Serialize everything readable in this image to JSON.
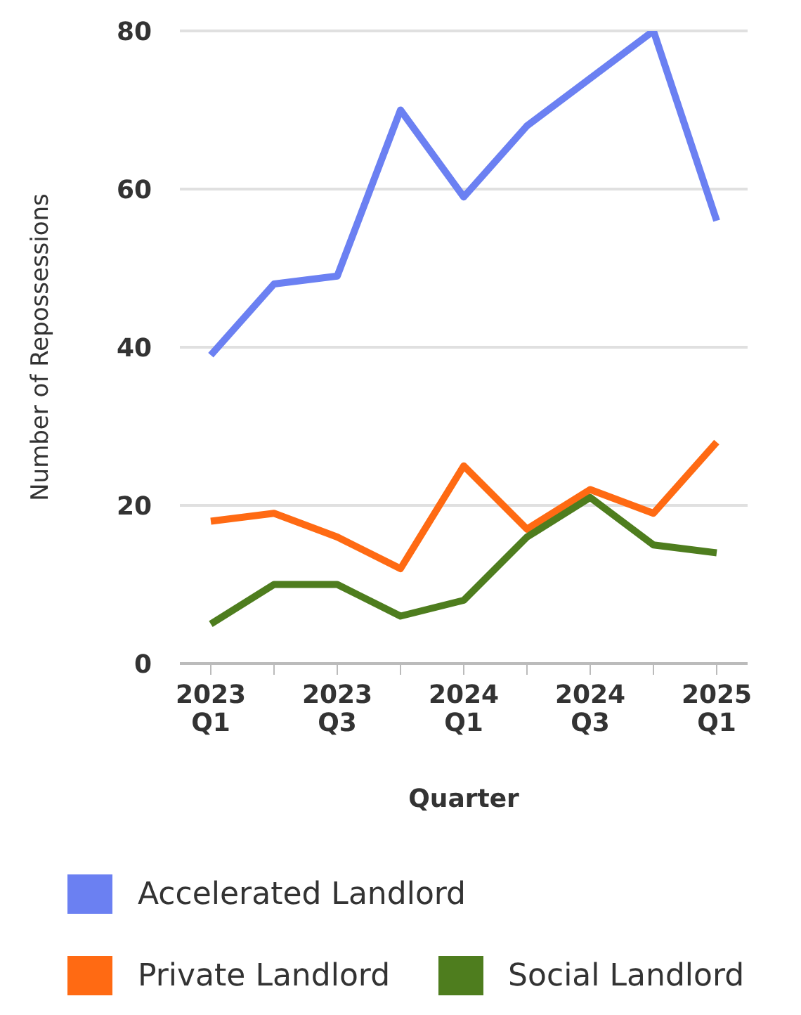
{
  "chart_data": {
    "type": "line",
    "xlabel": "Quarter",
    "ylabel": "Number of Repossessions",
    "categories": [
      "2023 Q1",
      null,
      "2023 Q3",
      null,
      "2024 Q1",
      null,
      "2024 Q3",
      null,
      "2025 Q1"
    ],
    "series": [
      {
        "name": "Accelerated Landlord",
        "color": "#6b80f2",
        "values": [
          39,
          48,
          49,
          70,
          59,
          68,
          74,
          80,
          56
        ]
      },
      {
        "name": "Private Landlord",
        "color": "#ff6a13",
        "values": [
          18,
          19,
          16,
          12,
          25,
          17,
          22,
          19,
          28
        ]
      },
      {
        "name": "Social Landlord",
        "color": "#4e7d1e",
        "values": [
          5,
          10,
          10,
          6,
          8,
          16,
          21,
          15,
          14
        ]
      }
    ],
    "ylim": [
      0,
      80
    ],
    "yticks": [
      0,
      20,
      40,
      60,
      80
    ],
    "grid": "y",
    "legend": "bottom",
    "marker": "none",
    "line_style": "solid"
  }
}
